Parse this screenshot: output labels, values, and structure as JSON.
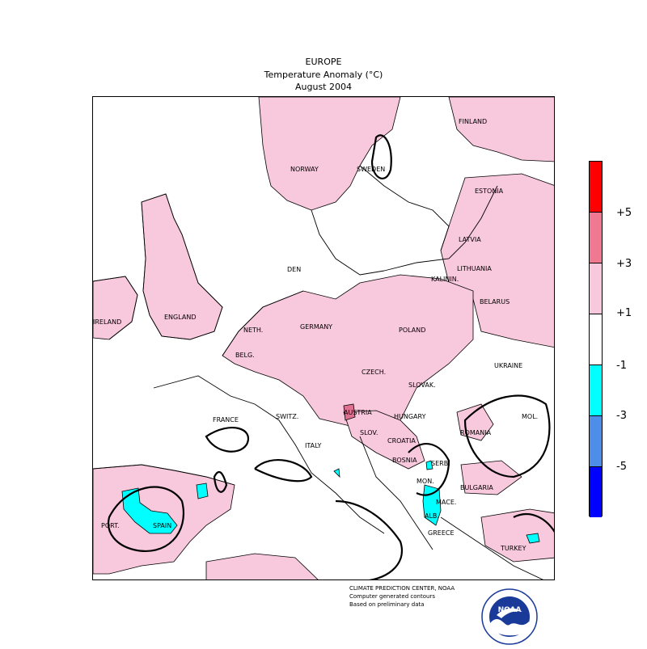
{
  "header": {
    "region": "EUROPE",
    "variable": "Temperature Anomaly (°C)",
    "period": "August 2004"
  },
  "legend": {
    "levels": [
      {
        "color": "#ff0000",
        "label": "+5"
      },
      {
        "color": "#f07890",
        "label": "+3"
      },
      {
        "color": "#f8c8dc",
        "label": "+1"
      },
      {
        "color": "#ffffff",
        "label": "-1"
      },
      {
        "color": "#00ffff",
        "label": "-3"
      },
      {
        "color": "#4d8fe8",
        "label": "-5"
      },
      {
        "color": "#0000ff",
        "label": ""
      }
    ]
  },
  "country_labels": [
    "FINLAND",
    "NORWAY",
    "SWEDEN",
    "ESTONIA",
    "LATVIA",
    "DEN",
    "LITHUANIA",
    "KALININ.",
    "BELARUS",
    "IRELAND",
    "ENGLAND",
    "NETH.",
    "GERMANY",
    "POLAND",
    "BELG.",
    "UKRAINE",
    "CZECH.",
    "SLOVAK.",
    "FRANCE",
    "SWITZ.",
    "AUSTRIA",
    "HUNGARY",
    "MOL.",
    "ROMANIA",
    "SLOV.",
    "CROATIA",
    "ITALY",
    "BOSNIA",
    "SERB.",
    "MON.",
    "BULGARIA",
    "MACE.",
    "PORT.",
    "SPAIN",
    "ALB.",
    "GREECE",
    "TURKEY"
  ],
  "credits": {
    "line1": "CLIMATE PREDICTION CENTER, NOAA",
    "line2": "Computer generated contours",
    "line3": "Based on preliminary data"
  },
  "logo": {
    "text": "NOAA",
    "icon": "noaa-logo-icon"
  },
  "colors": {
    "positive_anomaly": "#f8c8dc",
    "negative_anomaly": "#00ffff",
    "strong_positive": "#e07090"
  }
}
